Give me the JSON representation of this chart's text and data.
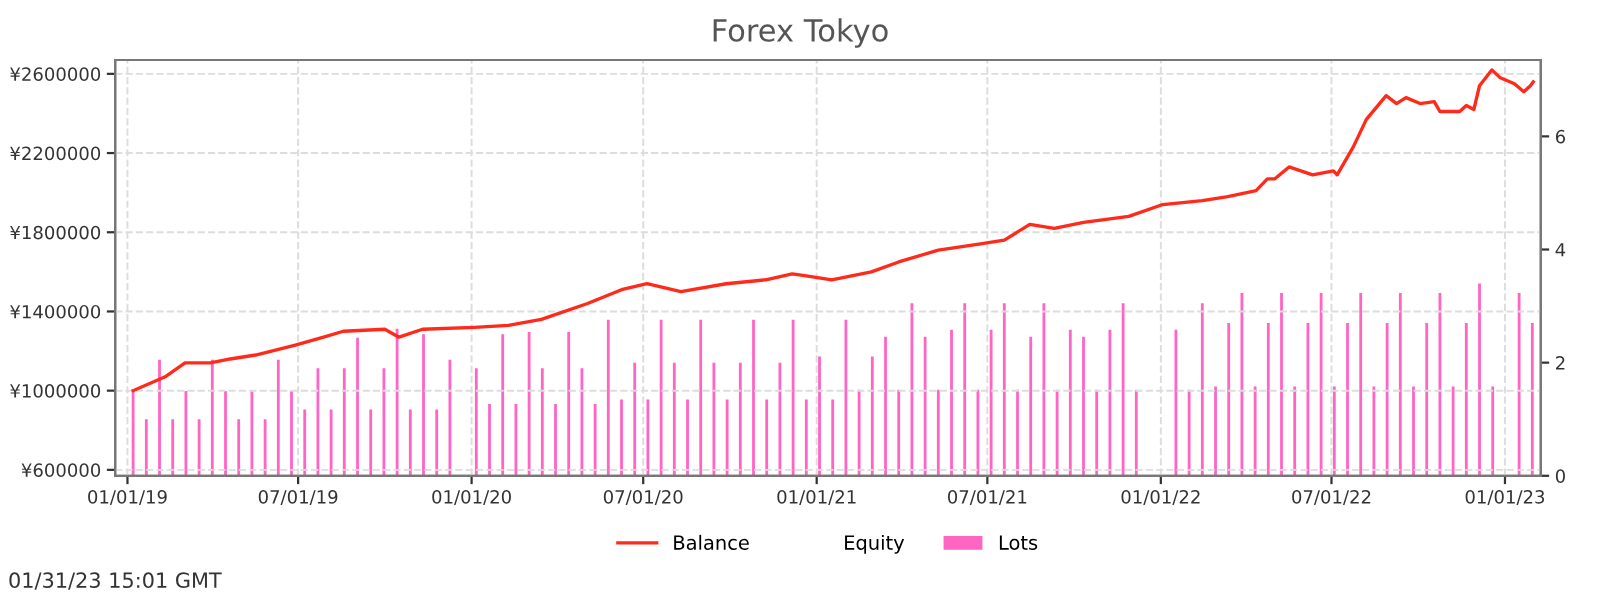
{
  "chart_data": {
    "type": "line",
    "title": "Forex Tokyo",
    "annotations": [
      "01/31/23 15:01 GMT"
    ],
    "xlim": [
      "2018-12-19",
      "2023-02-08"
    ],
    "xticks": [
      {
        "value": "2019-01-01",
        "label": "01/01/19"
      },
      {
        "value": "2019-07-01",
        "label": "07/01/19"
      },
      {
        "value": "2020-01-01",
        "label": "01/01/20"
      },
      {
        "value": "2020-07-01",
        "label": "07/01/20"
      },
      {
        "value": "2021-01-01",
        "label": "01/01/21"
      },
      {
        "value": "2021-07-01",
        "label": "07/01/21"
      },
      {
        "value": "2022-01-01",
        "label": "01/01/22"
      },
      {
        "value": "2022-07-01",
        "label": "07/01/22"
      },
      {
        "value": "2023-01-01",
        "label": "01/01/23"
      }
    ],
    "ylim": [
      570000,
      2670000
    ],
    "yticks": [
      {
        "value": 600000,
        "label": "¥600000"
      },
      {
        "value": 1000000,
        "label": "¥1000000"
      },
      {
        "value": 1400000,
        "label": "¥1400000"
      },
      {
        "value": 1800000,
        "label": "¥1800000"
      },
      {
        "value": 2200000,
        "label": "¥2200000"
      },
      {
        "value": 2600000,
        "label": "¥2600000"
      }
    ],
    "y2lim": [
      0,
      7.35
    ],
    "y2ticks": [
      0,
      2,
      4,
      6
    ],
    "grid": true,
    "legend": "bottom",
    "marker": "none",
    "line_style": "solid",
    "series": [
      {
        "name": "Balance",
        "color": "#ff2a1a",
        "x": [
          "2019-01-07",
          "2019-02-10",
          "2019-03-03",
          "2019-03-30",
          "2019-04-20",
          "2019-05-17",
          "2019-06-28",
          "2019-07-28",
          "2019-08-18",
          "2019-10-01",
          "2019-10-16",
          "2019-11-10",
          "2020-01-04",
          "2020-02-09",
          "2020-03-15",
          "2020-05-03",
          "2020-06-08",
          "2020-07-05",
          "2020-08-10",
          "2020-09-27",
          "2020-11-08",
          "2020-12-06",
          "2020-12-21",
          "2021-01-17",
          "2021-02-28",
          "2021-03-29",
          "2021-05-10",
          "2021-06-22",
          "2021-07-19",
          "2021-08-15",
          "2021-09-10",
          "2021-10-11",
          "2021-11-28",
          "2022-01-03",
          "2022-02-14",
          "2022-03-13",
          "2022-04-12",
          "2022-04-24",
          "2022-05-02",
          "2022-05-17",
          "2022-06-11",
          "2022-07-03",
          "2022-07-07",
          "2022-07-24",
          "2022-08-07",
          "2022-08-28",
          "2022-09-08",
          "2022-09-18",
          "2022-10-03",
          "2022-10-18",
          "2022-10-24",
          "2022-11-14",
          "2022-11-21",
          "2022-11-29",
          "2022-12-05",
          "2022-12-18",
          "2022-12-27",
          "2023-01-11",
          "2023-01-21",
          "2023-01-28",
          "2023-01-31"
        ],
        "values": [
          1000000,
          1070000,
          1140000,
          1140000,
          1160000,
          1180000,
          1230000,
          1270000,
          1300000,
          1310000,
          1270000,
          1310000,
          1320000,
          1330000,
          1360000,
          1440000,
          1510000,
          1540000,
          1500000,
          1540000,
          1560000,
          1590000,
          1580000,
          1560000,
          1600000,
          1650000,
          1710000,
          1740000,
          1760000,
          1840000,
          1820000,
          1850000,
          1880000,
          1940000,
          1960000,
          1980000,
          2010000,
          2070000,
          2070000,
          2130000,
          2090000,
          2110000,
          2090000,
          2230000,
          2370000,
          2490000,
          2450000,
          2480000,
          2450000,
          2460000,
          2410000,
          2410000,
          2440000,
          2420000,
          2540000,
          2620000,
          2580000,
          2550000,
          2510000,
          2540000,
          2560000
        ]
      },
      {
        "name": "Equity",
        "type": "line"
      },
      {
        "name": "Lots",
        "type": "bar",
        "axis": "y2",
        "color": "#ff66c4",
        "x": [
          "2019-01-07",
          "2019-01-21",
          "2019-02-04",
          "2019-02-18",
          "2019-03-04",
          "2019-03-18",
          "2019-04-01",
          "2019-04-15",
          "2019-04-29",
          "2019-05-13",
          "2019-05-27",
          "2019-06-10",
          "2019-06-24",
          "2019-07-08",
          "2019-07-22",
          "2019-08-05",
          "2019-08-19",
          "2019-09-02",
          "2019-09-16",
          "2019-09-30",
          "2019-10-14",
          "2019-10-28",
          "2019-11-11",
          "2019-11-25",
          "2019-12-09",
          "2020-01-06",
          "2020-01-20",
          "2020-02-03",
          "2020-02-17",
          "2020-03-02",
          "2020-03-16",
          "2020-03-30",
          "2020-04-13",
          "2020-04-27",
          "2020-05-11",
          "2020-05-25",
          "2020-06-08",
          "2020-06-22",
          "2020-07-06",
          "2020-07-20",
          "2020-08-03",
          "2020-08-17",
          "2020-08-31",
          "2020-09-14",
          "2020-09-28",
          "2020-10-12",
          "2020-10-26",
          "2020-11-09",
          "2020-11-23",
          "2020-12-07",
          "2020-12-21",
          "2021-01-04",
          "2021-01-18",
          "2021-02-01",
          "2021-02-15",
          "2021-03-01",
          "2021-03-15",
          "2021-03-29",
          "2021-04-12",
          "2021-04-26",
          "2021-05-10",
          "2021-05-24",
          "2021-06-07",
          "2021-06-21",
          "2021-07-05",
          "2021-07-19",
          "2021-08-02",
          "2021-08-16",
          "2021-08-30",
          "2021-09-13",
          "2021-09-27",
          "2021-10-11",
          "2021-10-25",
          "2021-11-08",
          "2021-11-22",
          "2021-12-06",
          "2022-01-17",
          "2022-01-31",
          "2022-02-14",
          "2022-02-28",
          "2022-03-14",
          "2022-03-28",
          "2022-04-11",
          "2022-04-25",
          "2022-05-09",
          "2022-05-23",
          "2022-06-06",
          "2022-06-20",
          "2022-07-04",
          "2022-07-18",
          "2022-08-01",
          "2022-08-15",
          "2022-08-29",
          "2022-09-12",
          "2022-09-26",
          "2022-10-10",
          "2022-10-24",
          "2022-11-07",
          "2022-11-21",
          "2022-12-05",
          "2022-12-19",
          "2023-01-16",
          "2023-01-30"
        ],
        "values": [
          1.5,
          1.0,
          2.05,
          1.0,
          1.5,
          1.0,
          2.05,
          1.5,
          1.0,
          1.5,
          1.0,
          2.05,
          1.5,
          1.17,
          1.9,
          1.17,
          1.9,
          2.44,
          1.17,
          1.9,
          2.6,
          1.17,
          2.5,
          1.17,
          2.05,
          1.9,
          1.27,
          2.5,
          1.27,
          2.54,
          1.9,
          1.27,
          2.54,
          1.9,
          1.27,
          2.76,
          1.35,
          2.0,
          1.35,
          2.76,
          2.0,
          1.35,
          2.76,
          2.0,
          1.35,
          2.0,
          2.76,
          1.35,
          2.0,
          2.76,
          1.35,
          2.11,
          1.35,
          2.76,
          1.52,
          2.11,
          2.46,
          1.52,
          3.05,
          2.46,
          1.52,
          2.58,
          3.05,
          1.52,
          2.58,
          3.05,
          1.52,
          2.46,
          3.05,
          1.52,
          2.58,
          2.46,
          1.52,
          2.58,
          3.05,
          1.52,
          2.58,
          1.52,
          3.05,
          1.58,
          2.7,
          3.23,
          1.58,
          2.7,
          3.23,
          1.58,
          2.7,
          3.23,
          1.58,
          2.7,
          3.23,
          1.58,
          2.7,
          3.23,
          1.58,
          2.7,
          3.23,
          1.58,
          2.7,
          3.4,
          1.58,
          3.23,
          2.7
        ]
      }
    ]
  }
}
